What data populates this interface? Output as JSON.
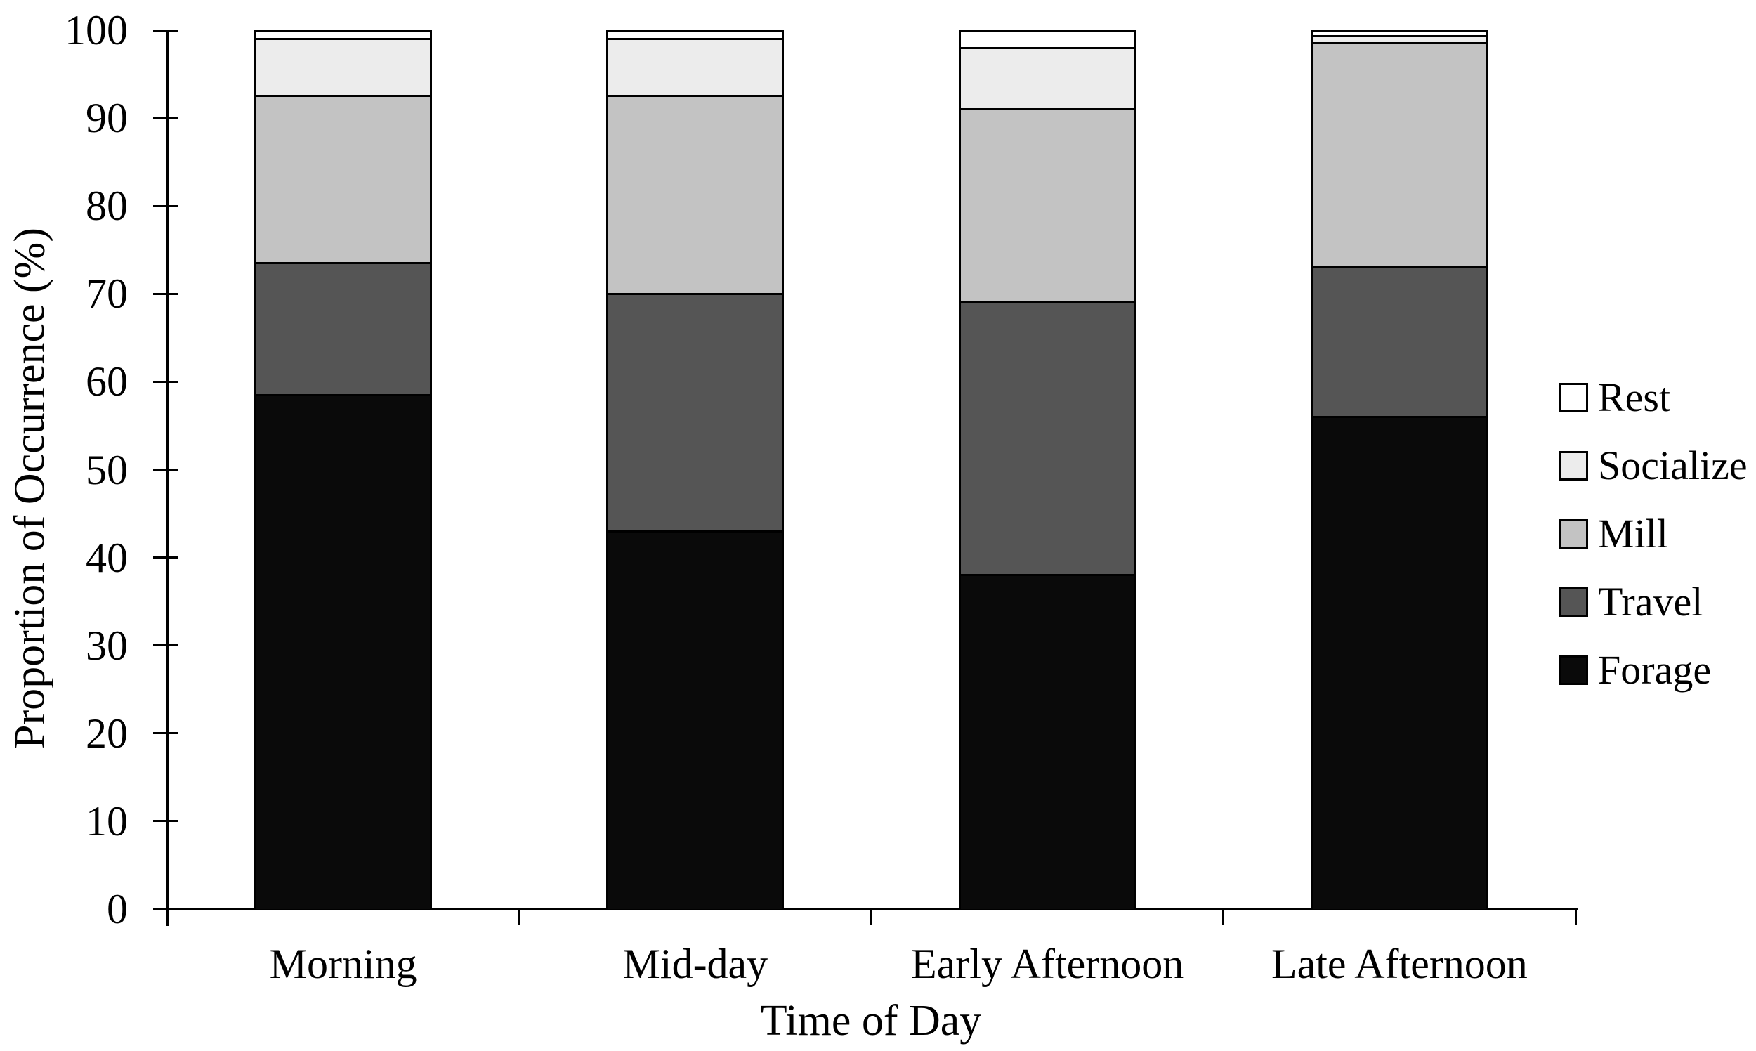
{
  "chart_data": {
    "type": "bar",
    "stacked": true,
    "title": "",
    "xlabel": "Time of Day",
    "ylabel": "Proportion of Occurrence (%)",
    "categories": [
      "Morning",
      "Mid-day",
      "Early Afternoon",
      "Late Afternoon"
    ],
    "series": [
      {
        "name": "Forage",
        "color": "#0a0a0a",
        "values": [
          58.5,
          43.0,
          38.0,
          56.0
        ]
      },
      {
        "name": "Travel",
        "color": "#555555",
        "values": [
          15.0,
          27.0,
          31.0,
          17.0
        ]
      },
      {
        "name": "Mill",
        "color": "#c3c3c3",
        "values": [
          19.0,
          22.5,
          22.0,
          25.5
        ]
      },
      {
        "name": "Socialize",
        "color": "#ececec",
        "values": [
          6.5,
          6.5,
          7.0,
          0.8
        ]
      },
      {
        "name": "Rest",
        "color": "#ffffff",
        "values": [
          1.0,
          1.0,
          2.0,
          0.7
        ]
      }
    ],
    "legend": {
      "position": "right",
      "order_top_to_bottom": [
        "Rest",
        "Socialize",
        "Mill",
        "Travel",
        "Forage"
      ]
    },
    "yticks": [
      0,
      10,
      20,
      30,
      40,
      50,
      60,
      70,
      80,
      90,
      100
    ],
    "ylim": [
      0,
      100
    ],
    "grid": false,
    "axis_color": "#000000",
    "background_color": "#ffffff"
  }
}
